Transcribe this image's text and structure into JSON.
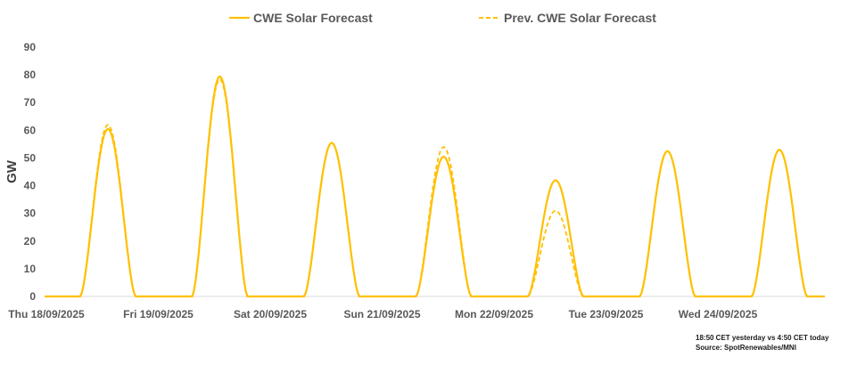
{
  "chart_data": {
    "type": "line",
    "title": "",
    "xlabel": "",
    "ylabel": "GW",
    "ylim": [
      0,
      90
    ],
    "yticks": [
      0,
      10,
      20,
      30,
      40,
      50,
      60,
      70,
      80,
      90
    ],
    "grid": false,
    "legend_position": "top-center",
    "categories": [
      "Thu 18/09/2025",
      "Fri 19/09/2025",
      "Sat 20/09/2025",
      "Sun 21/09/2025",
      "Mon 22/09/2025",
      "Tue 23/09/2025",
      "Wed 24/09/2025"
    ],
    "series": [
      {
        "name": "CWE Solar Forecast",
        "style": "solid",
        "color": "#FFC000",
        "daily_peaks": [
          60.5,
          79.5,
          55.5,
          50.5,
          42,
          52.5,
          53
        ]
      },
      {
        "name": "Prev. CWE Solar Forecast",
        "style": "dashed",
        "color": "#FFC000",
        "daily_peaks": [
          62,
          78.5,
          55.5,
          54,
          31,
          52.5,
          53
        ]
      }
    ]
  },
  "notes": {
    "line1": "18:50 CET yesterday vs  4:50 CET today",
    "line2": "Source: SpotRenewables/MNI"
  }
}
